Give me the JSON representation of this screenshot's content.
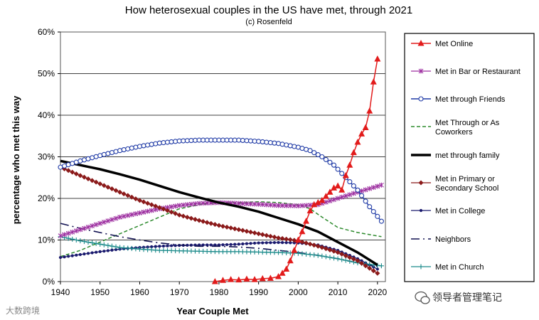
{
  "chart_data": {
    "type": "line",
    "title": "How heterosexual couples in the US have met, through 2021",
    "subtitle": "(c) Rosenfeld",
    "xlabel": "Year Couple Met",
    "ylabel": "percentage who met this way",
    "xlim": [
      1940,
      2022
    ],
    "ylim": [
      0,
      60
    ],
    "x_ticks": [
      "1940",
      "1950",
      "1960",
      "1970",
      "1980",
      "1990",
      "2000",
      "2010",
      "2020"
    ],
    "y_ticks": [
      "0%",
      "10%",
      "20%",
      "30%",
      "40%",
      "50%",
      "60%"
    ],
    "grid": "horizontal",
    "legend_position": "right",
    "series": [
      {
        "name": "Met Online",
        "color": "#e21b1b",
        "points": [
          [
            1979,
            0
          ],
          [
            1981,
            0.3
          ],
          [
            1983,
            0.5
          ],
          [
            1985,
            0.4
          ],
          [
            1987,
            0.6
          ],
          [
            1989,
            0.5
          ],
          [
            1991,
            0.7
          ],
          [
            1993,
            0.8
          ],
          [
            1995,
            1.2
          ],
          [
            1996,
            2
          ],
          [
            1997,
            3
          ],
          [
            1998,
            5
          ],
          [
            1999,
            7.5
          ],
          [
            2000,
            10
          ],
          [
            2001,
            12
          ],
          [
            2002,
            14.5
          ],
          [
            2003,
            17
          ],
          [
            2004,
            18.5
          ],
          [
            2005,
            19
          ],
          [
            2006,
            19.5
          ],
          [
            2007,
            20.5
          ],
          [
            2008,
            21.5
          ],
          [
            2009,
            22.5
          ],
          [
            2010,
            23
          ],
          [
            2011,
            22
          ],
          [
            2012,
            25.5
          ],
          [
            2013,
            28
          ],
          [
            2014,
            31
          ],
          [
            2015,
            33.5
          ],
          [
            2016,
            35.5
          ],
          [
            2017,
            37
          ],
          [
            2018,
            41
          ],
          [
            2019,
            48
          ],
          [
            2020,
            53.5
          ]
        ]
      },
      {
        "name": "Met in Bar or Restaurant",
        "color": "#9d2fa0",
        "points": [
          [
            1940,
            11
          ],
          [
            1945,
            12.5
          ],
          [
            1950,
            14
          ],
          [
            1955,
            15.5
          ],
          [
            1960,
            16.5
          ],
          [
            1965,
            17.5
          ],
          [
            1970,
            18.3
          ],
          [
            1975,
            18.8
          ],
          [
            1980,
            19
          ],
          [
            1985,
            18.8
          ],
          [
            1990,
            18.6
          ],
          [
            1995,
            18.3
          ],
          [
            2000,
            18.2
          ],
          [
            2005,
            18.5
          ],
          [
            2010,
            20
          ],
          [
            2015,
            21.5
          ],
          [
            2021,
            23.2
          ]
        ]
      },
      {
        "name": "Met through Friends",
        "color": "#1f3aa6",
        "points": [
          [
            1940,
            27.5
          ],
          [
            1945,
            29
          ],
          [
            1950,
            30.3
          ],
          [
            1955,
            31.5
          ],
          [
            1960,
            32.5
          ],
          [
            1965,
            33.3
          ],
          [
            1970,
            33.8
          ],
          [
            1975,
            34
          ],
          [
            1980,
            34
          ],
          [
            1985,
            34
          ],
          [
            1990,
            33.7
          ],
          [
            1995,
            33.2
          ],
          [
            2000,
            32.3
          ],
          [
            2003,
            31.5
          ],
          [
            2006,
            30
          ],
          [
            2009,
            28
          ],
          [
            2012,
            25
          ],
          [
            2015,
            22
          ],
          [
            2018,
            18
          ],
          [
            2021,
            14.5
          ]
        ]
      },
      {
        "name": "Met Through or As Coworkers",
        "color": "#2e8b2e",
        "points": [
          [
            1940,
            6
          ],
          [
            1945,
            7.5
          ],
          [
            1950,
            9.5
          ],
          [
            1955,
            11.5
          ],
          [
            1960,
            13.5
          ],
          [
            1965,
            15.5
          ],
          [
            1970,
            17.5
          ],
          [
            1975,
            18.5
          ],
          [
            1980,
            19
          ],
          [
            1985,
            19
          ],
          [
            1990,
            19.2
          ],
          [
            1995,
            19
          ],
          [
            2000,
            18.5
          ],
          [
            2003,
            17.5
          ],
          [
            2006,
            15.5
          ],
          [
            2010,
            13
          ],
          [
            2015,
            11.8
          ],
          [
            2021,
            10.8
          ]
        ]
      },
      {
        "name": "met through family",
        "color": "#000000",
        "points": [
          [
            1940,
            29
          ],
          [
            1945,
            28
          ],
          [
            1950,
            27
          ],
          [
            1955,
            25.8
          ],
          [
            1960,
            24.5
          ],
          [
            1965,
            23
          ],
          [
            1970,
            21.5
          ],
          [
            1975,
            20.2
          ],
          [
            1980,
            19
          ],
          [
            1985,
            18
          ],
          [
            1990,
            16.8
          ],
          [
            1995,
            15.3
          ],
          [
            2000,
            13.8
          ],
          [
            2005,
            12
          ],
          [
            2010,
            9.5
          ],
          [
            2015,
            7
          ],
          [
            2020,
            4
          ]
        ]
      },
      {
        "name": "Met in Primary or Secondary School",
        "color": "#8b1a1a",
        "points": [
          [
            1940,
            27.5
          ],
          [
            1945,
            25.5
          ],
          [
            1950,
            23.5
          ],
          [
            1955,
            21.5
          ],
          [
            1960,
            19.5
          ],
          [
            1965,
            17.8
          ],
          [
            1970,
            16
          ],
          [
            1975,
            14.7
          ],
          [
            1980,
            13.5
          ],
          [
            1985,
            12.5
          ],
          [
            1990,
            11.5
          ],
          [
            1995,
            10.5
          ],
          [
            2000,
            9.8
          ],
          [
            2005,
            8.5
          ],
          [
            2010,
            7
          ],
          [
            2015,
            5
          ],
          [
            2020,
            2
          ]
        ]
      },
      {
        "name": "Met in College",
        "color": "#1a1a6e",
        "points": [
          [
            1940,
            5.8
          ],
          [
            1945,
            6.5
          ],
          [
            1950,
            7.2
          ],
          [
            1955,
            7.8
          ],
          [
            1960,
            8.2
          ],
          [
            1965,
            8.5
          ],
          [
            1970,
            8.7
          ],
          [
            1975,
            8.8
          ],
          [
            1980,
            8.8
          ],
          [
            1985,
            9
          ],
          [
            1990,
            9.3
          ],
          [
            1995,
            9.4
          ],
          [
            2000,
            9.3
          ],
          [
            2005,
            8.8
          ],
          [
            2010,
            7.5
          ],
          [
            2015,
            5.5
          ],
          [
            2020,
            3
          ]
        ]
      },
      {
        "name": "Neighbors",
        "color": "#101050",
        "points": [
          [
            1940,
            14
          ],
          [
            1945,
            12.8
          ],
          [
            1950,
            11.8
          ],
          [
            1955,
            10.8
          ],
          [
            1960,
            10
          ],
          [
            1965,
            9.3
          ],
          [
            1970,
            8.8
          ],
          [
            1975,
            8.5
          ],
          [
            1980,
            8.5
          ],
          [
            1985,
            8.3
          ],
          [
            1990,
            8
          ],
          [
            1995,
            7.5
          ],
          [
            2000,
            7
          ],
          [
            2005,
            6.3
          ],
          [
            2010,
            5.5
          ],
          [
            2015,
            4.5
          ],
          [
            2021,
            3.5
          ]
        ]
      },
      {
        "name": "Met in Church",
        "color": "#1a8a8a",
        "points": [
          [
            1940,
            10.8
          ],
          [
            1945,
            9.8
          ],
          [
            1950,
            9
          ],
          [
            1955,
            8.2
          ],
          [
            1960,
            7.8
          ],
          [
            1965,
            7.5
          ],
          [
            1970,
            7.4
          ],
          [
            1975,
            7.3
          ],
          [
            1980,
            7.2
          ],
          [
            1985,
            7.2
          ],
          [
            1990,
            7.1
          ],
          [
            1995,
            7
          ],
          [
            2000,
            6.8
          ],
          [
            2005,
            6.3
          ],
          [
            2010,
            5.5
          ],
          [
            2015,
            4.5
          ],
          [
            2021,
            3.8
          ]
        ]
      }
    ]
  },
  "watermark_left": "大数跨境",
  "watermark_right": "领导者管理笔记"
}
